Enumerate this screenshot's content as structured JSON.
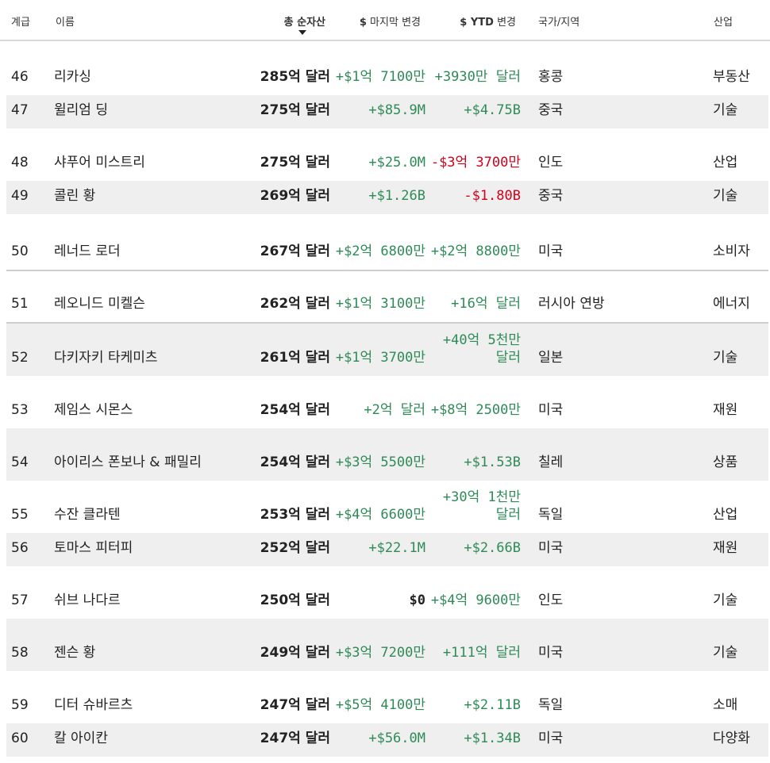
{
  "header": {
    "rank": "계급",
    "name": "이름",
    "net_worth": "총 순자산",
    "last_change_symbol": "$",
    "last_change": " 마지막 변경",
    "ytd_symbol": "$ YTD",
    "ytd": " 변경",
    "country": "국가/지역",
    "industry": "산업"
  },
  "colors": {
    "positive": "#2e8b57",
    "negative": "#d0021b",
    "row_shade": "#efefef"
  },
  "rows": [
    {
      "rank": "46",
      "name": "리카싱",
      "net_worth": "285억 달러",
      "last_change": "+$1억 7100만",
      "ytd_change": "+3930만 달러",
      "country": "홍콩",
      "industry": "부동산"
    },
    {
      "rank": "47",
      "name": "윌리엄 딩",
      "net_worth": "275억 달러",
      "last_change": "+$85.9M",
      "ytd_change": "+$4.75B",
      "country": "중국",
      "industry": "기술"
    },
    {
      "rank": "48",
      "name": "샤푸어 미스트리",
      "net_worth": "275억 달러",
      "last_change": "+$25.0M",
      "ytd_change": "-$3억 3700만",
      "country": "인도",
      "industry": "산업"
    },
    {
      "rank": "49",
      "name": "콜린 황",
      "net_worth": "269억 달러",
      "last_change": "+$1.26B",
      "ytd_change": "-$1.80B",
      "country": "중국",
      "industry": "기술"
    },
    {
      "rank": "50",
      "name": "레너드 로더",
      "net_worth": "267억 달러",
      "last_change": "+$2억 6800만",
      "ytd_change": "+$2억 8800만",
      "country": "미국",
      "industry": "소비자"
    },
    {
      "rank": "51",
      "name": "레오니드 미켈슨",
      "net_worth": "262억 달러",
      "last_change": "+$1억 3100만",
      "ytd_change": "+16억 달러",
      "country": "러시아 연방",
      "industry": "에너지"
    },
    {
      "rank": "52",
      "name": "다키자키 타케미츠",
      "net_worth": "261억 달러",
      "last_change": "+$1억 3700만",
      "ytd_change": "+40억 5천만 달러",
      "country": "일본",
      "industry": "기술"
    },
    {
      "rank": "53",
      "name": "제임스 시몬스",
      "net_worth": "254억 달러",
      "last_change": "+2억 달러",
      "ytd_change": "+$8억 2500만",
      "country": "미국",
      "industry": "재원"
    },
    {
      "rank": "54",
      "name": "아이리스 폰보나 & 패밀리",
      "net_worth": "254억 달러",
      "last_change": "+$3억 5500만",
      "ytd_change": "+$1.53B",
      "country": "칠레",
      "industry": "상품"
    },
    {
      "rank": "55",
      "name": "수잔 클라텐",
      "net_worth": "253억 달러",
      "last_change": "+$4억 6600만",
      "ytd_change": "+30억 1천만 달러",
      "country": "독일",
      "industry": "산업"
    },
    {
      "rank": "56",
      "name": "토마스 피터피",
      "net_worth": "252억 달러",
      "last_change": "+$22.1M",
      "ytd_change": "+$2.66B",
      "country": "미국",
      "industry": "재원"
    },
    {
      "rank": "57",
      "name": "쉬브 나다르",
      "net_worth": "250억 달러",
      "last_change": "$0",
      "ytd_change": "+$4억 9600만",
      "country": "인도",
      "industry": "기술"
    },
    {
      "rank": "58",
      "name": "젠슨 황",
      "net_worth": "249억 달러",
      "last_change": "+$3억 7200만",
      "ytd_change": "+111억 달러",
      "country": "미국",
      "industry": "기술"
    },
    {
      "rank": "59",
      "name": "디터 슈바르츠",
      "net_worth": "247억 달러",
      "last_change": "+$5억 4100만",
      "ytd_change": "+$2.11B",
      "country": "독일",
      "industry": "소매"
    },
    {
      "rank": "60",
      "name": "칼 아이칸",
      "net_worth": "247억 달러",
      "last_change": "+$56.0M",
      "ytd_change": "+$1.34B",
      "country": "미국",
      "industry": "다양화"
    }
  ]
}
